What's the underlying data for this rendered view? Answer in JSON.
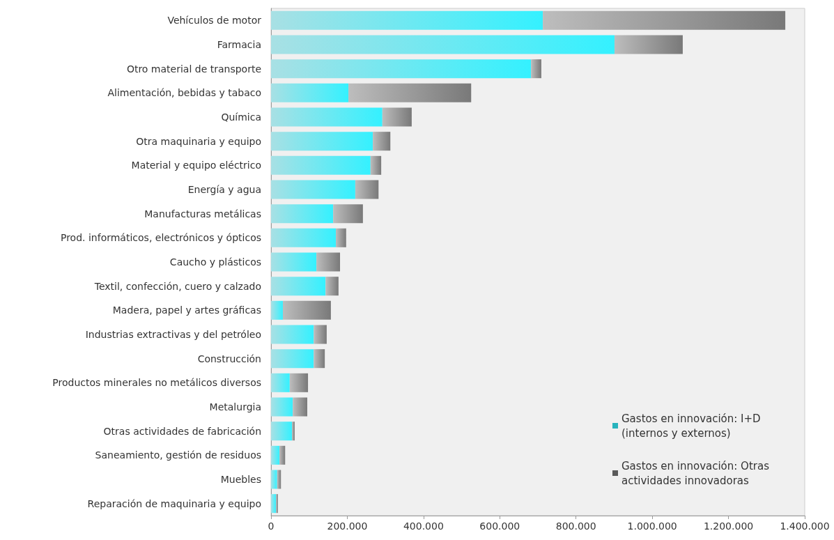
{
  "chart_data": {
    "type": "bar",
    "orientation": "horizontal",
    "stacked": true,
    "categories": [
      "Vehículos de motor",
      "Farmacia",
      "Otro material de transporte",
      "Alimentación, bebidas y tabaco",
      "Química",
      "Otra maquinaria y equipo",
      "Material y equipo eléctrico",
      "Energía y agua",
      "Manufacturas metálicas",
      "Prod. informáticos, electrónicos y ópticos",
      "Caucho y plásticos",
      "Textil, confección, cuero y calzado",
      "Madera, papel y artes gráficas",
      "Industrias extractivas y del petróleo",
      "Construcción",
      "Productos minerales no metálicos diversos",
      "Metalurgia",
      "Otras actividades de fabricación",
      "Saneamiento, gestión de residuos",
      "Muebles",
      "Reparación de maquinaria y equipo"
    ],
    "series": [
      {
        "name": "Gastos en innovación: I+D (internos y externos)",
        "color": "#27b3bd",
        "values": [
          713000,
          901000,
          682000,
          203000,
          292000,
          267000,
          261000,
          221000,
          163000,
          170000,
          119000,
          143000,
          31000,
          112000,
          112000,
          49000,
          57000,
          55000,
          22000,
          16000,
          13000
        ]
      },
      {
        "name": "Gastos en innovación: Otras actividades innovadoras",
        "color": "#5a5a5a",
        "values": [
          636000,
          179000,
          27000,
          322000,
          77000,
          46000,
          28000,
          61000,
          78000,
          27000,
          62000,
          34000,
          126000,
          34000,
          29000,
          48000,
          38000,
          7000,
          15000,
          10000,
          5000
        ]
      }
    ],
    "xlim": [
      0,
      1400000
    ],
    "xticks": [
      {
        "value": 0,
        "label": "0"
      },
      {
        "value": 200000,
        "label": "200.000"
      },
      {
        "value": 400000,
        "label": "400.000"
      },
      {
        "value": 600000,
        "label": "600.000"
      },
      {
        "value": 800000,
        "label": "800.000"
      },
      {
        "value": 1000000,
        "label": "1.000.000"
      },
      {
        "value": 1200000,
        "label": "1.200.000"
      },
      {
        "value": 1400000,
        "label": "1.400.000"
      }
    ],
    "grid": false,
    "legend": "bottom right"
  }
}
